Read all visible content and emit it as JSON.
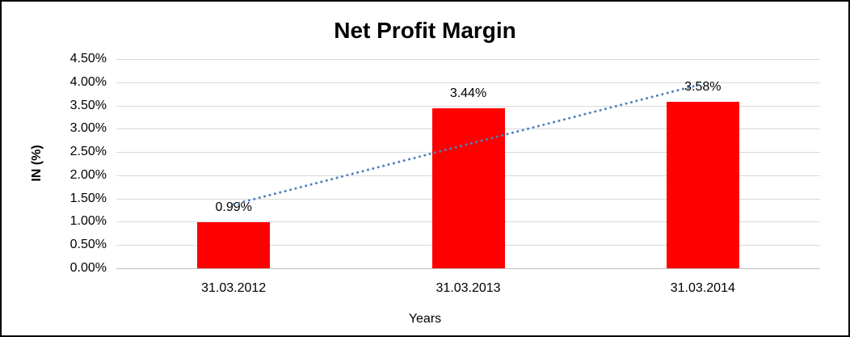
{
  "chart_data": {
    "type": "bar",
    "title": "Net Profit Margin",
    "xlabel": "Years",
    "ylabel": "IN (%)",
    "categories": [
      "31.03.2012",
      "31.03.2013",
      "31.03.2014"
    ],
    "values": [
      0.99,
      3.44,
      3.58
    ],
    "data_labels": [
      "0.99%",
      "3.44%",
      "3.58%"
    ],
    "y_ticks": [
      "4.50%",
      "4.00%",
      "3.50%",
      "3.00%",
      "2.50%",
      "2.00%",
      "1.50%",
      "1.00%",
      "0.50%",
      "0.00%"
    ],
    "ylim": [
      0,
      4.5
    ],
    "grid": true,
    "legend": "none",
    "series_name": "Net Profit Margin",
    "trendline": {
      "type": "linear",
      "style": "dotted",
      "fitted_values": [
        1.375,
        2.67,
        3.965
      ]
    },
    "colors": {
      "bar": "#ff0000",
      "trendline": "#4f81bd",
      "gridline": "#d9d9d9",
      "axis_line": "#bfbfbf",
      "text": "#000000",
      "background": "#ffffff",
      "border": "#000000"
    }
  }
}
